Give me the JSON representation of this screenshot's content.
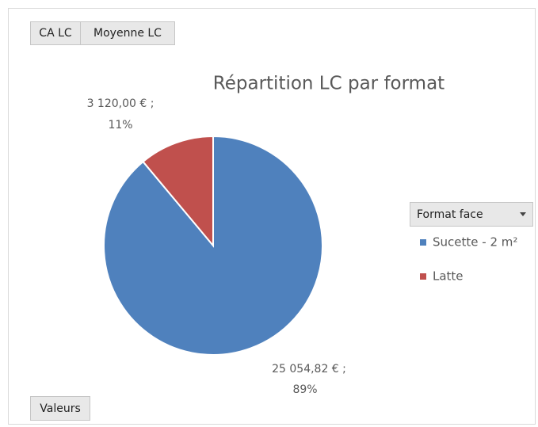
{
  "chart_data": {
    "type": "pie",
    "title": "Répartition LC par format",
    "categories": [
      "Sucette - 2 m²",
      "Latte"
    ],
    "values": [
      25054.82,
      3120
    ],
    "value_labels": [
      "25 054,82 € ;",
      "3 120,00 € ;"
    ],
    "percent_labels": [
      "89%",
      "11%"
    ],
    "colors": [
      "#4f81bd",
      "#c0504d"
    ],
    "legend_title": "Format face",
    "filter_buttons": [
      "CA LC",
      "Moyenne LC"
    ],
    "values_button": "Valeurs"
  }
}
